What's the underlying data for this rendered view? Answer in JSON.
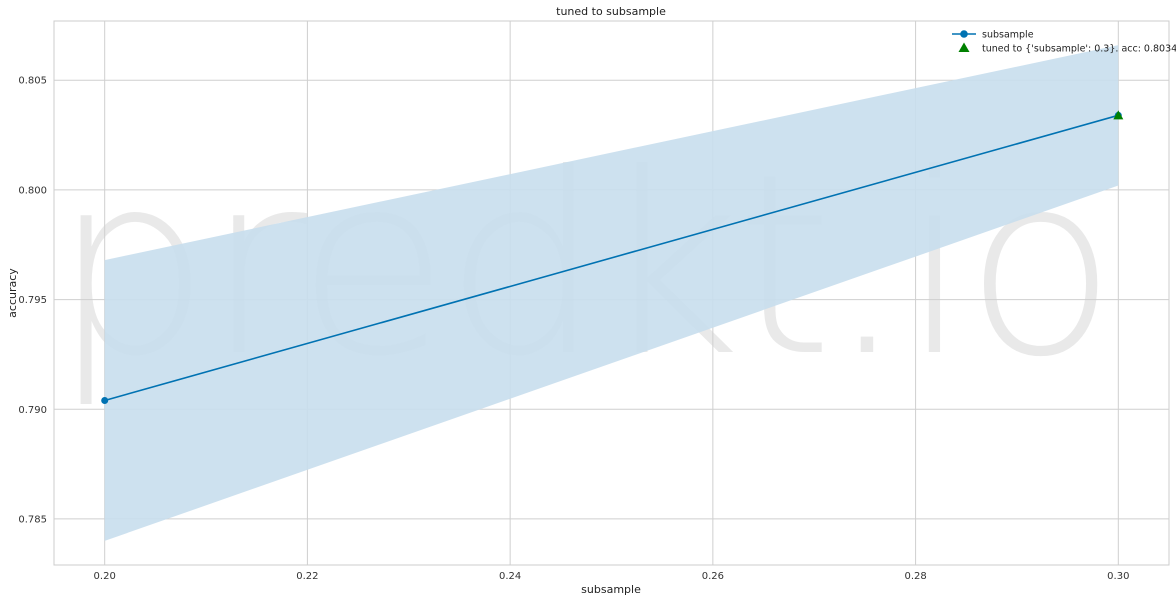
{
  "chart_data": {
    "type": "line",
    "title": "tuned to subsample",
    "xlabel": "subsample",
    "ylabel": "accuracy",
    "xlim": [
      0.195,
      0.305
    ],
    "ylim": [
      0.7829,
      0.8077
    ],
    "x_ticks": [
      0.2,
      0.22,
      0.24,
      0.26,
      0.28,
      0.3
    ],
    "x_tick_labels": [
      "0.20",
      "0.22",
      "0.24",
      "0.26",
      "0.28",
      "0.30"
    ],
    "y_ticks": [
      0.785,
      0.79,
      0.795,
      0.8,
      0.805
    ],
    "y_tick_labels": [
      "0.785",
      "0.790",
      "0.795",
      "0.800",
      "0.805"
    ],
    "grid": true,
    "legend_position": "top-right",
    "series": [
      {
        "name": "subsample",
        "x": [
          0.2,
          0.3
        ],
        "y": [
          0.7904,
          0.8034
        ],
        "band_lower": [
          0.784,
          0.8002
        ],
        "band_upper": [
          0.7968,
          0.8066
        ],
        "color": "#0072b2",
        "band_color": "#c8deed"
      }
    ],
    "marker": {
      "label": "tuned to {'subsample': 0.3}.  acc: 0.8034",
      "x": 0.3,
      "y": 0.8034,
      "color": "#008000"
    },
    "watermark": "predkt.io"
  }
}
